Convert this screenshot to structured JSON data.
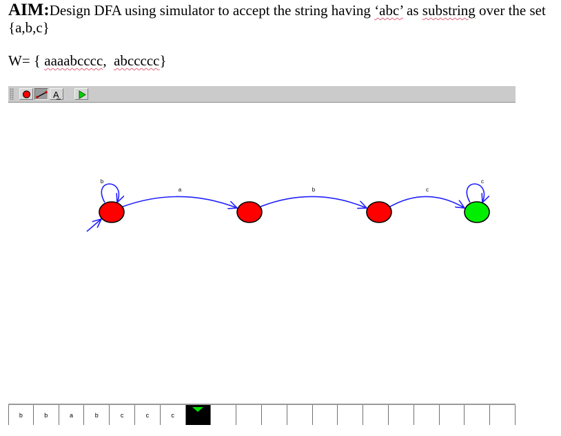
{
  "aim": {
    "label": "AIM:",
    "text_1": "Design DFA using simulator to accept the string having ",
    "substring": "‘abc’",
    "text_2": " as ",
    "word_substring": "substring",
    "text_3": " over the set {a,b,c}"
  },
  "strings_line": {
    "prefix": "W= { ",
    "first": "aaaabcccc",
    "sep": ",  ",
    "second": "abccccc",
    "suffix": "}"
  },
  "toolbar": {
    "tools": [
      {
        "name": "state-tool",
        "icon": "red-circle-icon",
        "pressed": false
      },
      {
        "name": "transition-tool",
        "icon": "arrow-line-icon",
        "pressed": true
      },
      {
        "name": "label-tool",
        "icon": "text-A-icon",
        "pressed": false
      },
      {
        "name": "run-tool",
        "icon": "green-play-icon",
        "pressed": false
      }
    ]
  },
  "automaton": {
    "states": [
      {
        "id": "q0",
        "color": "#ff0000",
        "start": true,
        "final": false,
        "self_loop": "b"
      },
      {
        "id": "q1",
        "color": "#ff0000",
        "start": false,
        "final": false,
        "self_loop": ""
      },
      {
        "id": "q2",
        "color": "#ff0000",
        "start": false,
        "final": false,
        "self_loop": ""
      },
      {
        "id": "q3",
        "color": "#00ee00",
        "start": false,
        "final": true,
        "self_loop": "c"
      }
    ],
    "transitions": [
      {
        "from": "q0",
        "to": "q1",
        "label": "a"
      },
      {
        "from": "q1",
        "to": "q2",
        "label": "b"
      },
      {
        "from": "q2",
        "to": "q3",
        "label": "c"
      }
    ],
    "edge_color": "#1f1fff"
  },
  "tape": {
    "cells": [
      "b",
      "b",
      "a",
      "b",
      "c",
      "c",
      "c",
      "",
      "",
      "",
      "",
      "",
      "",
      "",
      "",
      "",
      "",
      "",
      "",
      ""
    ],
    "head_index": 7
  }
}
